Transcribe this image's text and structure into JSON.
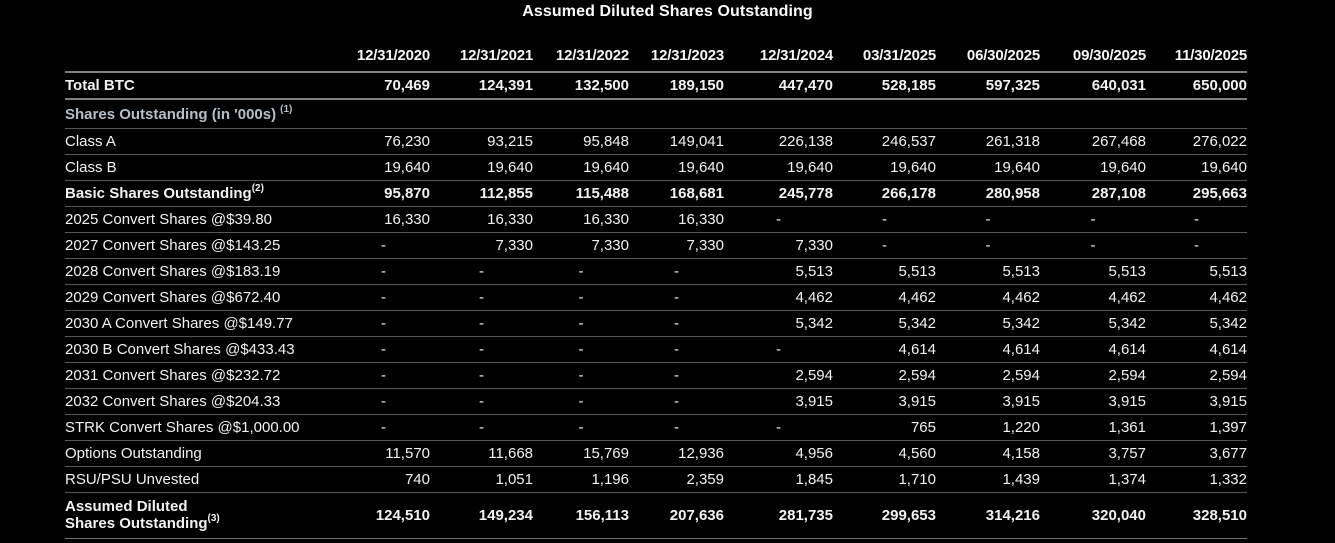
{
  "title": "Assumed Diluted Shares Outstanding",
  "colors": {
    "background": "#000000",
    "text": "#f2f2f2",
    "section_header_text": "#b3c0ca",
    "rule_strong": "#7f7f7f",
    "rule_light": "#585858"
  },
  "table": {
    "columns": [
      "12/31/2020",
      "12/31/2021",
      "12/31/2022",
      "12/31/2023",
      "12/31/2024",
      "03/31/2025",
      "06/30/2025",
      "09/30/2025",
      "11/30/2025"
    ],
    "rows": [
      {
        "style": "r-total",
        "label_lines": [
          "Total BTC"
        ],
        "sup": "",
        "values": [
          "70,469",
          "124,391",
          "132,500",
          "189,150",
          "447,470",
          "528,185",
          "597,325",
          "640,031",
          "650,000"
        ]
      },
      {
        "style": "r-section",
        "section": true,
        "label_lines": [
          "Shares Outstanding (in '000s)"
        ],
        "sup": "(1)",
        "values": []
      },
      {
        "style": "",
        "label_lines": [
          "Class A"
        ],
        "sup": "",
        "values": [
          "76,230",
          "93,215",
          "95,848",
          "149,041",
          "226,138",
          "246,537",
          "261,318",
          "267,468",
          "276,022"
        ]
      },
      {
        "style": "",
        "label_lines": [
          "Class B"
        ],
        "sup": "",
        "values": [
          "19,640",
          "19,640",
          "19,640",
          "19,640",
          "19,640",
          "19,640",
          "19,640",
          "19,640",
          "19,640"
        ]
      },
      {
        "style": "r-bold",
        "label_lines": [
          "Basic Shares Outstanding"
        ],
        "sup": "(2)",
        "values": [
          "95,870",
          "112,855",
          "115,488",
          "168,681",
          "245,778",
          "266,178",
          "280,958",
          "287,108",
          "295,663"
        ]
      },
      {
        "style": "",
        "label_lines": [
          "2025 Convert Shares @$39.80"
        ],
        "sup": "",
        "values": [
          "16,330",
          "16,330",
          "16,330",
          "16,330",
          "-",
          "-",
          "-",
          "-",
          "-"
        ]
      },
      {
        "style": "",
        "label_lines": [
          "2027 Convert Shares @$143.25"
        ],
        "sup": "",
        "values": [
          "-",
          "7,330",
          "7,330",
          "7,330",
          "7,330",
          "-",
          "-",
          "-",
          "-"
        ]
      },
      {
        "style": "",
        "label_lines": [
          "2028 Convert Shares @$183.19"
        ],
        "sup": "",
        "values": [
          "-",
          "-",
          "-",
          "-",
          "5,513",
          "5,513",
          "5,513",
          "5,513",
          "5,513"
        ]
      },
      {
        "style": "",
        "label_lines": [
          "2029 Convert Shares @$672.40"
        ],
        "sup": "",
        "values": [
          "-",
          "-",
          "-",
          "-",
          "4,462",
          "4,462",
          "4,462",
          "4,462",
          "4,462"
        ]
      },
      {
        "style": "",
        "label_lines": [
          "2030 A Convert Shares @$149.77"
        ],
        "sup": "",
        "values": [
          "-",
          "-",
          "-",
          "-",
          "5,342",
          "5,342",
          "5,342",
          "5,342",
          "5,342"
        ]
      },
      {
        "style": "",
        "label_lines": [
          "2030 B Convert Shares @$433.43"
        ],
        "sup": "",
        "values": [
          "-",
          "-",
          "-",
          "-",
          "-",
          "4,614",
          "4,614",
          "4,614",
          "4,614"
        ]
      },
      {
        "style": "",
        "label_lines": [
          "2031 Convert Shares @$232.72"
        ],
        "sup": "",
        "values": [
          "-",
          "-",
          "-",
          "-",
          "2,594",
          "2,594",
          "2,594",
          "2,594",
          "2,594"
        ]
      },
      {
        "style": "",
        "label_lines": [
          "2032 Convert Shares @$204.33"
        ],
        "sup": "",
        "values": [
          "-",
          "-",
          "-",
          "-",
          "3,915",
          "3,915",
          "3,915",
          "3,915",
          "3,915"
        ]
      },
      {
        "style": "",
        "label_lines": [
          "STRK Convert Shares @$1,000.00"
        ],
        "sup": "",
        "values": [
          "-",
          "-",
          "-",
          "-",
          "-",
          "765",
          "1,220",
          "1,361",
          "1,397"
        ]
      },
      {
        "style": "",
        "label_lines": [
          "Options Outstanding"
        ],
        "sup": "",
        "values": [
          "11,570",
          "11,668",
          "15,769",
          "12,936",
          "4,956",
          "4,560",
          "4,158",
          "3,757",
          "3,677"
        ]
      },
      {
        "style": "",
        "label_lines": [
          "RSU/PSU Unvested"
        ],
        "sup": "",
        "values": [
          "740",
          "1,051",
          "1,196",
          "2,359",
          "1,845",
          "1,710",
          "1,439",
          "1,374",
          "1,332"
        ]
      },
      {
        "style": "r-bold r-last",
        "label_lines": [
          "Assumed Diluted",
          "Shares Outstanding"
        ],
        "sup": "(3)",
        "values": [
          "124,510",
          "149,234",
          "156,113",
          "207,636",
          "281,735",
          "299,653",
          "314,216",
          "320,040",
          "328,510"
        ]
      }
    ]
  },
  "chart_data": {
    "type": "table",
    "title": "Assumed Diluted Shares Outstanding",
    "categories": [
      "12/31/2020",
      "12/31/2021",
      "12/31/2022",
      "12/31/2023",
      "12/31/2024",
      "03/31/2025",
      "06/30/2025",
      "09/30/2025",
      "11/30/2025"
    ],
    "units_note": "Shares Outstanding (in '000s)",
    "series": [
      {
        "name": "Total BTC",
        "values": [
          70469,
          124391,
          132500,
          189150,
          447470,
          528185,
          597325,
          640031,
          650000
        ]
      },
      {
        "name": "Class A",
        "values": [
          76230,
          93215,
          95848,
          149041,
          226138,
          246537,
          261318,
          267468,
          276022
        ]
      },
      {
        "name": "Class B",
        "values": [
          19640,
          19640,
          19640,
          19640,
          19640,
          19640,
          19640,
          19640,
          19640
        ]
      },
      {
        "name": "Basic Shares Outstanding",
        "values": [
          95870,
          112855,
          115488,
          168681,
          245778,
          266178,
          280958,
          287108,
          295663
        ]
      },
      {
        "name": "2025 Convert Shares @$39.80",
        "values": [
          16330,
          16330,
          16330,
          16330,
          null,
          null,
          null,
          null,
          null
        ]
      },
      {
        "name": "2027 Convert Shares @$143.25",
        "values": [
          null,
          7330,
          7330,
          7330,
          7330,
          null,
          null,
          null,
          null
        ]
      },
      {
        "name": "2028 Convert Shares @$183.19",
        "values": [
          null,
          null,
          null,
          null,
          5513,
          5513,
          5513,
          5513,
          5513
        ]
      },
      {
        "name": "2029 Convert Shares @$672.40",
        "values": [
          null,
          null,
          null,
          null,
          4462,
          4462,
          4462,
          4462,
          4462
        ]
      },
      {
        "name": "2030 A Convert Shares @$149.77",
        "values": [
          null,
          null,
          null,
          null,
          5342,
          5342,
          5342,
          5342,
          5342
        ]
      },
      {
        "name": "2030 B Convert Shares @$433.43",
        "values": [
          null,
          null,
          null,
          null,
          null,
          4614,
          4614,
          4614,
          4614
        ]
      },
      {
        "name": "2031 Convert Shares @$232.72",
        "values": [
          null,
          null,
          null,
          null,
          2594,
          2594,
          2594,
          2594,
          2594
        ]
      },
      {
        "name": "2032 Convert Shares @$204.33",
        "values": [
          null,
          null,
          null,
          null,
          3915,
          3915,
          3915,
          3915,
          3915
        ]
      },
      {
        "name": "STRK Convert Shares @$1,000.00",
        "values": [
          null,
          null,
          null,
          null,
          null,
          765,
          1220,
          1361,
          1397
        ]
      },
      {
        "name": "Options Outstanding",
        "values": [
          11570,
          11668,
          15769,
          12936,
          4956,
          4560,
          4158,
          3757,
          3677
        ]
      },
      {
        "name": "RSU/PSU Unvested",
        "values": [
          740,
          1051,
          1196,
          2359,
          1845,
          1710,
          1439,
          1374,
          1332
        ]
      },
      {
        "name": "Assumed Diluted Shares Outstanding",
        "values": [
          124510,
          149234,
          156113,
          207636,
          281735,
          299653,
          314216,
          320040,
          328510
        ]
      }
    ]
  }
}
